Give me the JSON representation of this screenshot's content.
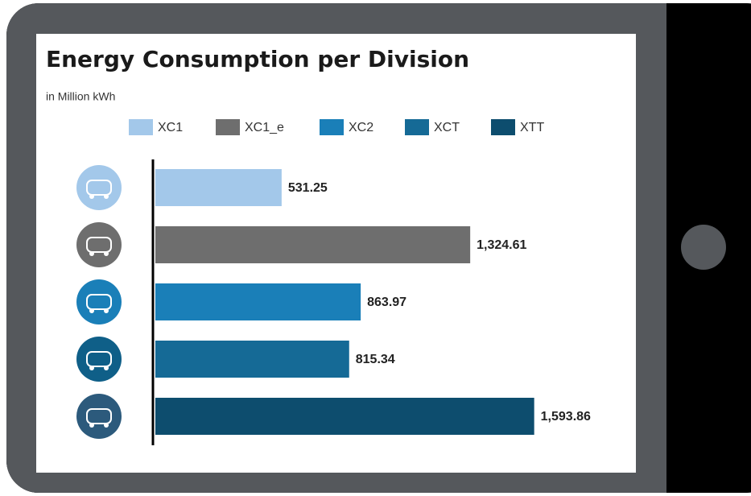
{
  "chart_data": {
    "type": "bar",
    "orientation": "horizontal",
    "title": "Energy Consumption per Division",
    "subtitle": "in Million kWh",
    "categories": [
      "XC1",
      "XC1_e",
      "XC2",
      "XCT",
      "XTT"
    ],
    "values": [
      531.25,
      1324.61,
      863.97,
      815.34,
      1593.86
    ],
    "value_labels": [
      "531.25",
      "1,324.61",
      "863.97",
      "815.34",
      "1,593.86"
    ],
    "colors": [
      "#a3c8ea",
      "#6e6e6e",
      "#1a7fb8",
      "#156a96",
      "#0d4d6e"
    ],
    "xlim": [
      0,
      1700
    ],
    "legend": "top"
  }
}
